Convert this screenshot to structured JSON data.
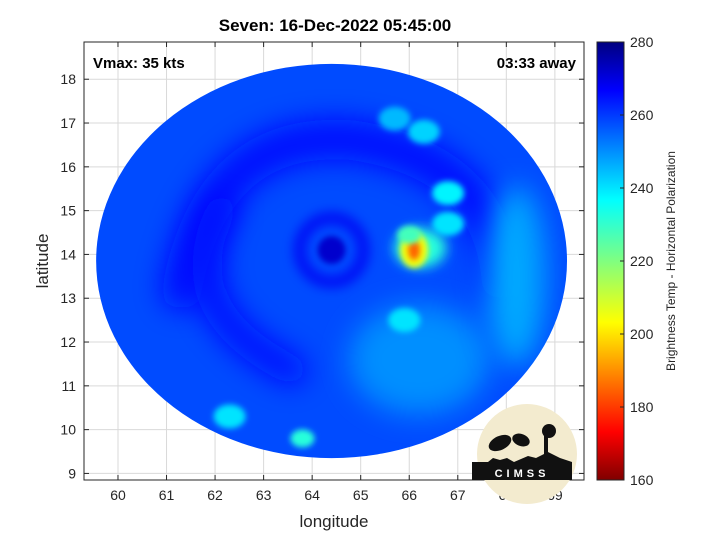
{
  "chart_data": {
    "type": "heatmap",
    "title": "Seven: 16-Dec-2022 05:45:00",
    "xlabel": "longitude",
    "ylabel": "latitude",
    "xlim": [
      59.3,
      69.6
    ],
    "ylim": [
      8.85,
      18.85
    ],
    "x_ticks": [
      60,
      61,
      62,
      63,
      64,
      65,
      66,
      67,
      68,
      69
    ],
    "y_ticks": [
      9,
      10,
      11,
      12,
      13,
      14,
      15,
      16,
      17,
      18
    ],
    "grid": true,
    "annotations": {
      "vmax": "Vmax: 35 kts",
      "distance": "03:33 away"
    },
    "colorbar": {
      "label": "Brightness Temp - Horizontal Polarization",
      "min": 160,
      "max": 280,
      "ticks": [
        160,
        180,
        200,
        220,
        240,
        260,
        280
      ],
      "colormap": "jet"
    },
    "storm_center": {
      "lon": 64.4,
      "lat": 14.1
    },
    "swath_center": {
      "lon": 64.4,
      "lat": 13.85
    },
    "features": [
      {
        "kind": "convection",
        "lon": 66.1,
        "lat": 14.1,
        "tb": 185
      },
      {
        "kind": "convection",
        "lon": 66.0,
        "lat": 14.45,
        "tb": 228
      },
      {
        "kind": "convection",
        "lon": 66.8,
        "lat": 15.4,
        "tb": 238
      },
      {
        "kind": "convection",
        "lon": 66.3,
        "lat": 16.8,
        "tb": 242
      },
      {
        "kind": "convection",
        "lon": 65.7,
        "lat": 17.1,
        "tb": 245
      },
      {
        "kind": "convection",
        "lon": 66.8,
        "lat": 14.7,
        "tb": 240
      },
      {
        "kind": "convection",
        "lon": 65.9,
        "lat": 12.5,
        "tb": 240
      },
      {
        "kind": "convection",
        "lon": 63.8,
        "lat": 9.8,
        "tb": 232
      },
      {
        "kind": "convection",
        "lon": 62.3,
        "lat": 10.3,
        "tb": 240
      },
      {
        "kind": "cold_ring",
        "lon": 64.4,
        "lat": 14.1,
        "tb": 268
      }
    ]
  },
  "logo": {
    "text": "CIMSS"
  },
  "colors": {
    "background": "#ffffff",
    "frame": "#262626",
    "grid": "#d9d9d9"
  }
}
